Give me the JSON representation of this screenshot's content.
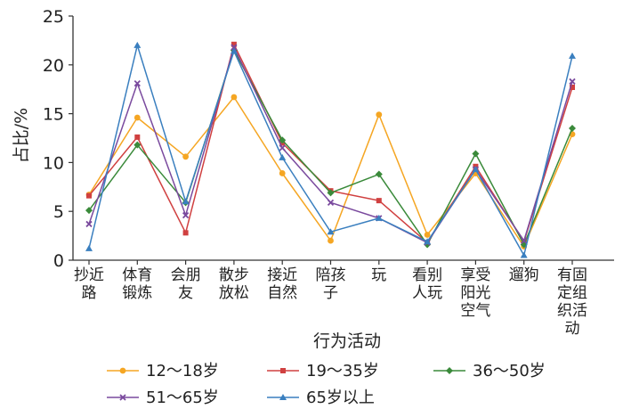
{
  "chart_data": {
    "type": "line",
    "title": "",
    "xlabel": "行为活动",
    "ylabel": "占比/%",
    "ylim": [
      0,
      25
    ],
    "yticks": [
      0,
      5,
      10,
      15,
      20,
      25
    ],
    "grid": false,
    "legend_position": "bottom",
    "categories": [
      [
        "抄近",
        "路"
      ],
      [
        "体育",
        "锻炼"
      ],
      [
        "会朋",
        "友"
      ],
      [
        "散步",
        "放松"
      ],
      [
        "接近",
        "自然"
      ],
      [
        "陪孩",
        "子"
      ],
      [
        "玩"
      ],
      [
        "看别",
        "人玩"
      ],
      [
        "享受",
        "阳光",
        "空气"
      ],
      [
        "遛狗"
      ],
      [
        "有固",
        "定组",
        "织活",
        "动"
      ]
    ],
    "series": [
      {
        "name": "12～18岁",
        "color": "#f5a623",
        "marker": "circle",
        "values": [
          6.7,
          14.6,
          10.6,
          16.7,
          8.9,
          2.0,
          14.9,
          2.6,
          8.9,
          1.4,
          12.9
        ]
      },
      {
        "name": "19～35岁",
        "color": "#d04040",
        "marker": "square",
        "values": [
          6.6,
          12.6,
          2.8,
          22.1,
          12.0,
          7.1,
          6.1,
          1.8,
          9.6,
          1.9,
          17.7
        ]
      },
      {
        "name": "36～50岁",
        "color": "#3a8a3a",
        "marker": "diamond",
        "values": [
          5.1,
          11.8,
          5.9,
          21.5,
          12.3,
          6.9,
          8.8,
          1.6,
          10.9,
          1.6,
          13.5
        ]
      },
      {
        "name": "51～65岁",
        "color": "#7a4a9e",
        "marker": "x",
        "values": [
          3.7,
          18.1,
          4.6,
          21.8,
          11.5,
          5.9,
          4.3,
          1.8,
          9.3,
          2.0,
          18.3
        ]
      },
      {
        "name": "65岁以上",
        "color": "#3a7fbf",
        "marker": "triangle",
        "values": [
          1.2,
          22.0,
          6.0,
          21.4,
          10.5,
          2.9,
          4.3,
          1.9,
          9.3,
          0.5,
          20.9
        ]
      }
    ]
  }
}
